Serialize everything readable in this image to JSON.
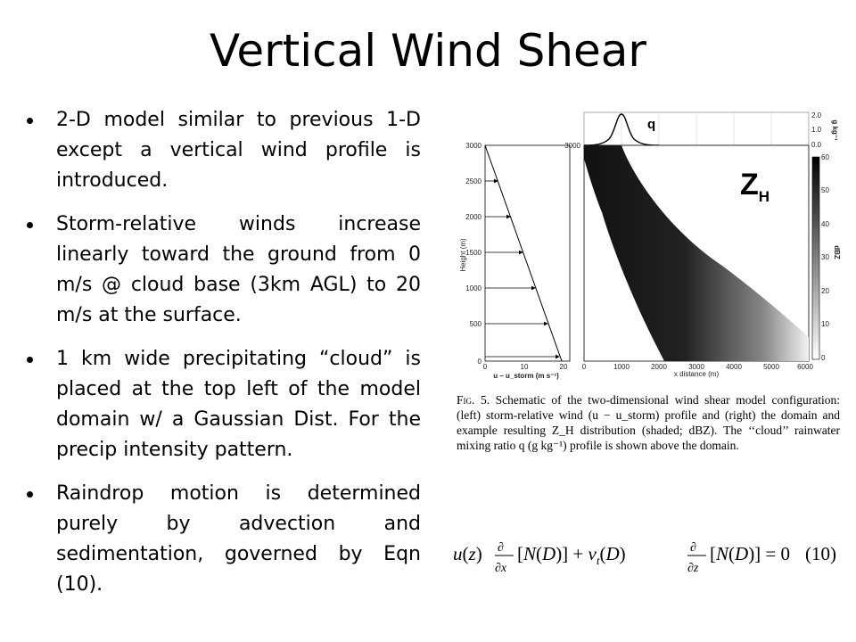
{
  "slide": {
    "title": "Vertical Wind Shear",
    "bullets": [
      "2-D model similar to previous 1-D except a vertical wind profile is introduced.",
      "Storm-relative winds increase linearly toward the ground from 0 m/s @ cloud base (3km AGL) to 20 m/s at the surface.",
      "1 km wide precipitating “cloud” is placed at the top left of the model domain w/ a Gaussian Dist. For the precip intensity pattern.",
      "Raindrop motion is determined purely by advection and sedimentation, governed by Eqn (10)."
    ]
  },
  "figure": {
    "wind_profile": {
      "ylabel": "Height (m)",
      "y_ticks": [
        "0",
        "500",
        "1000",
        "1500",
        "2000",
        "2500",
        "3000"
      ],
      "x_ticks": [
        "0",
        "10",
        "20"
      ],
      "xlabel": "u – u_storm (m s⁻¹)"
    },
    "q_profile": {
      "label": "q",
      "y_ticks": [
        "2.0",
        "1.0",
        "0.0"
      ],
      "unit": "g kg⁻¹"
    },
    "domain": {
      "label": "ZH",
      "y_ticks": [
        "3000"
      ],
      "x_ticks": [
        "0",
        "1000",
        "2000",
        "3000",
        "4000",
        "5000",
        "6000"
      ],
      "xlabel": "x distance (m)"
    },
    "colorbar": {
      "ticks": [
        "60",
        "50",
        "40",
        "30",
        "20",
        "10",
        "0"
      ],
      "label": "dBZ"
    }
  },
  "caption": {
    "label": "Fig. 5.",
    "text": "Schematic of the two-dimensional wind shear model configuration: (left) storm-relative wind (u − u_storm) profile and (right) the domain and example resulting Z_H distribution (shaded; dBZ). The ‘‘cloud’’ rainwater mixing ratio q (g kg⁻¹) profile is shown above the domain."
  },
  "equation": {
    "number": "(10)"
  }
}
